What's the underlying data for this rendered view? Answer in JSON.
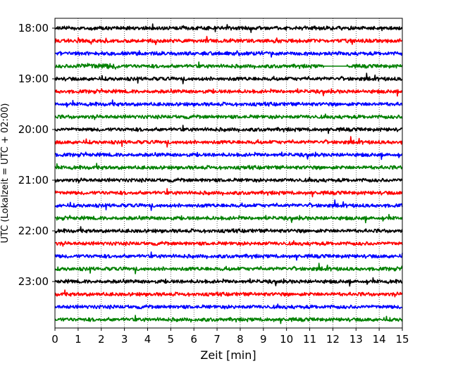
{
  "chart_data": {
    "type": "line",
    "title": "",
    "xlabel": "Zeit  [min]",
    "ylabel": "UTC (Lokalzeit = UTC + 02:00)",
    "xlim": [
      0,
      15
    ],
    "x_ticks": [
      "0",
      "1",
      "2",
      "3",
      "4",
      "5",
      "6",
      "7",
      "8",
      "9",
      "10",
      "11",
      "12",
      "13",
      "14",
      "15"
    ],
    "y_tick_labels": [
      "18:00",
      "19:00",
      "20:00",
      "21:00",
      "22:00",
      "23:00"
    ],
    "grid": "vertical dotted lines at each minute",
    "trace_start_times": [
      "18:00",
      "18:15",
      "18:30",
      "18:45",
      "19:00",
      "19:15",
      "19:30",
      "19:45",
      "20:00",
      "20:15",
      "20:30",
      "20:45",
      "21:00",
      "21:15",
      "21:30",
      "21:45",
      "22:00",
      "22:15",
      "22:30",
      "22:45",
      "23:00",
      "23:15",
      "23:30",
      "23:45"
    ],
    "trace_colors": [
      "#000000",
      "#ff0000",
      "#0000ff",
      "#008000"
    ],
    "color_cycle_note": "",
    "gap": {
      "trace": "18:45",
      "x_start_min": 11.6,
      "x_end_min": 12.6
    }
  }
}
